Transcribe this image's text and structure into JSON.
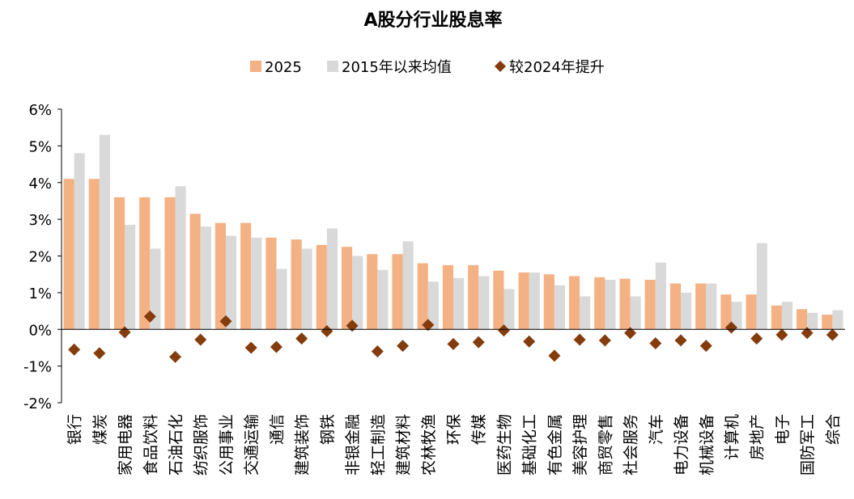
{
  "chart_data": {
    "type": "bar",
    "title": "A股分行业股息率",
    "xlabel": "",
    "ylabel": "",
    "ylim": [
      -0.02,
      0.06
    ],
    "yticks": [
      -0.02,
      -0.01,
      0,
      0.01,
      0.02,
      0.03,
      0.04,
      0.05,
      0.06
    ],
    "ytick_labels": [
      "-2%",
      "-1%",
      "0%",
      "1%",
      "2%",
      "3%",
      "4%",
      "5%",
      "6%"
    ],
    "grid": false,
    "legend_position": "top-center",
    "categories": [
      "银行",
      "煤炭",
      "家用电器",
      "食品饮料",
      "石油石化",
      "纺织服饰",
      "公用事业",
      "交通运输",
      "通信",
      "建筑装饰",
      "钢铁",
      "非银金融",
      "轻工制造",
      "建筑材料",
      "农林牧渔",
      "环保",
      "传媒",
      "医药生物",
      "基础化工",
      "有色金属",
      "美容护理",
      "商贸零售",
      "社会服务",
      "汽车",
      "电力设备",
      "机械设备",
      "计算机",
      "房地产",
      "电子",
      "国防军工",
      "综合"
    ],
    "series": [
      {
        "name": "2025",
        "kind": "bar",
        "color": "#F4B183",
        "values": [
          0.041,
          0.041,
          0.036,
          0.036,
          0.036,
          0.0315,
          0.029,
          0.029,
          0.025,
          0.0245,
          0.023,
          0.0225,
          0.0205,
          0.0205,
          0.018,
          0.0175,
          0.0175,
          0.016,
          0.0155,
          0.015,
          0.0145,
          0.0142,
          0.0138,
          0.0135,
          0.0125,
          0.0125,
          0.0095,
          0.0095,
          0.0065,
          0.0055,
          0.004
        ]
      },
      {
        "name": "2015年以来均值",
        "kind": "bar",
        "color": "#D9D9D9",
        "values": [
          0.048,
          0.053,
          0.0285,
          0.022,
          0.039,
          0.028,
          0.0255,
          0.025,
          0.0165,
          0.022,
          0.0275,
          0.02,
          0.0162,
          0.024,
          0.013,
          0.014,
          0.0145,
          0.011,
          0.0155,
          0.012,
          0.009,
          0.0135,
          0.009,
          0.0182,
          0.01,
          0.0125,
          0.0075,
          0.0235,
          0.0075,
          0.0045,
          0.0052
        ]
      },
      {
        "name": "较2024年提升",
        "kind": "marker",
        "color": "#843C0C",
        "values": [
          -0.0055,
          -0.0065,
          -0.0008,
          0.0035,
          -0.0075,
          -0.0028,
          0.0022,
          -0.005,
          -0.0048,
          -0.0025,
          -0.0005,
          0.001,
          -0.006,
          -0.0045,
          0.0012,
          -0.004,
          -0.0035,
          -0.0003,
          -0.0033,
          -0.0072,
          -0.0028,
          -0.003,
          -0.001,
          -0.0038,
          -0.003,
          -0.0045,
          0.0005,
          -0.0025,
          -0.0015,
          -0.001,
          -0.0015
        ]
      }
    ]
  }
}
